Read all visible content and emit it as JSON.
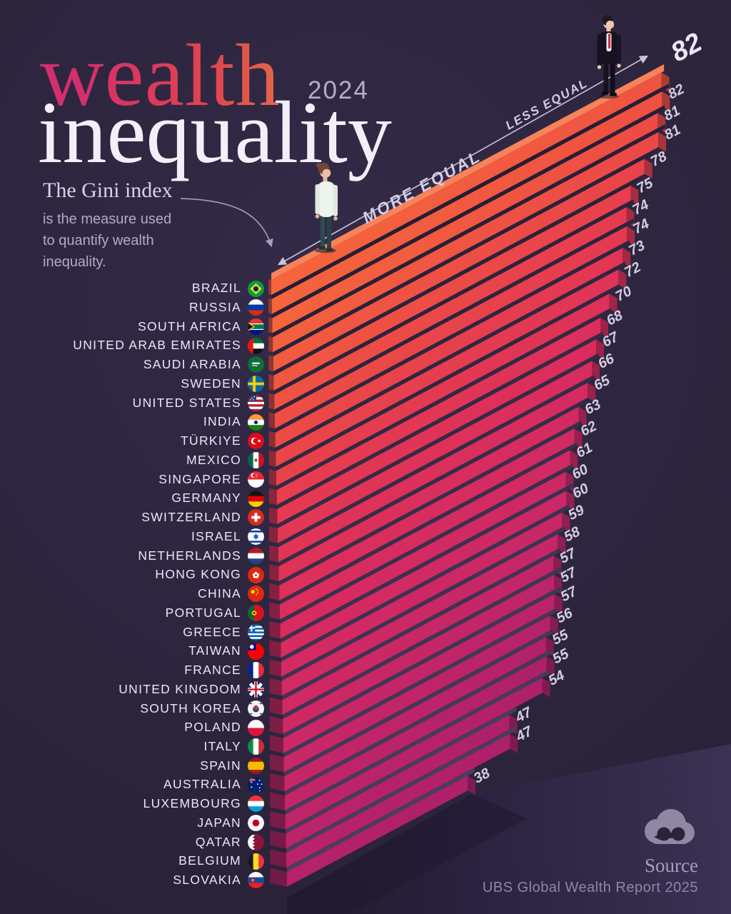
{
  "title": {
    "word1": "wealth",
    "word2": "inequality",
    "year": "2024"
  },
  "note": {
    "heading": "The Gini index",
    "line1": "is the measure used",
    "line2": "to quantify wealth",
    "line3": "inequality."
  },
  "axis": {
    "more_label": "MORE EQUAL",
    "less_label": "LESS EQUAL"
  },
  "source": {
    "label": "Source",
    "report": "UBS Global Wealth Report 2025"
  },
  "colors": {
    "background": "#2b2339",
    "floor_light": "#3b3254",
    "floor_shadow": "#1f1930",
    "bar_top_orange": "#f56539",
    "bar_bottom_magenta": "#ae206a",
    "wall_top_face": "#f8825a",
    "gap_dark": "#251c32",
    "gap_light": "#474060",
    "axis_line": "#c9c3da",
    "title_accent_from": "#d42e6e",
    "title_accent_to": "#e2664a",
    "country_text": "#ebe7f4",
    "value_text": "#d3cce1",
    "value_text_highlight": "#ece7f5"
  },
  "chart_data": {
    "type": "bar",
    "title": "wealth inequality 2024",
    "metric": "Gini index (wealth)",
    "year": "2024",
    "orientation": "isometric horizontal bars, sorted descending",
    "grid": false,
    "legend_position": "none",
    "value_range": [
      0,
      82
    ],
    "axis_annotations": [
      "MORE EQUAL",
      "LESS EQUAL"
    ],
    "highlight": {
      "category": "BRAZIL",
      "value": 82
    },
    "categories": [
      "BRAZIL",
      "RUSSIA",
      "SOUTH AFRICA",
      "UNITED ARAB EMIRATES",
      "SAUDI ARABIA",
      "SWEDEN",
      "UNITED STATES",
      "INDIA",
      "TÜRKIYE",
      "MEXICO",
      "SINGAPORE",
      "GERMANY",
      "SWITZERLAND",
      "ISRAEL",
      "NETHERLANDS",
      "HONG KONG",
      "CHINA",
      "PORTUGAL",
      "GREECE",
      "TAIWAN",
      "FRANCE",
      "UNITED KINGDOM",
      "SOUTH KOREA",
      "POLAND",
      "ITALY",
      "SPAIN",
      "AUSTRALIA",
      "LUXEMBOURG",
      "JAPAN",
      "QATAR",
      "BELGIUM",
      "SLOVAKIA"
    ],
    "values": [
      82,
      82,
      81,
      81,
      78,
      75,
      74,
      74,
      73,
      72,
      70,
      68,
      67,
      66,
      65,
      63,
      62,
      61,
      60,
      60,
      59,
      58,
      57,
      57,
      57,
      56,
      55,
      55,
      54,
      47,
      47,
      38
    ],
    "flags": [
      "brazil",
      "russia",
      "south-africa",
      "united-arab-emirates",
      "saudi-arabia",
      "sweden",
      "united-states",
      "india",
      "turkiye",
      "mexico",
      "singapore",
      "germany",
      "switzerland",
      "israel",
      "netherlands",
      "hong-kong",
      "china",
      "portugal",
      "greece",
      "taiwan",
      "france",
      "united-kingdom",
      "south-korea",
      "poland",
      "italy",
      "spain",
      "australia",
      "luxembourg",
      "japan",
      "qatar",
      "belgium",
      "slovakia"
    ]
  }
}
